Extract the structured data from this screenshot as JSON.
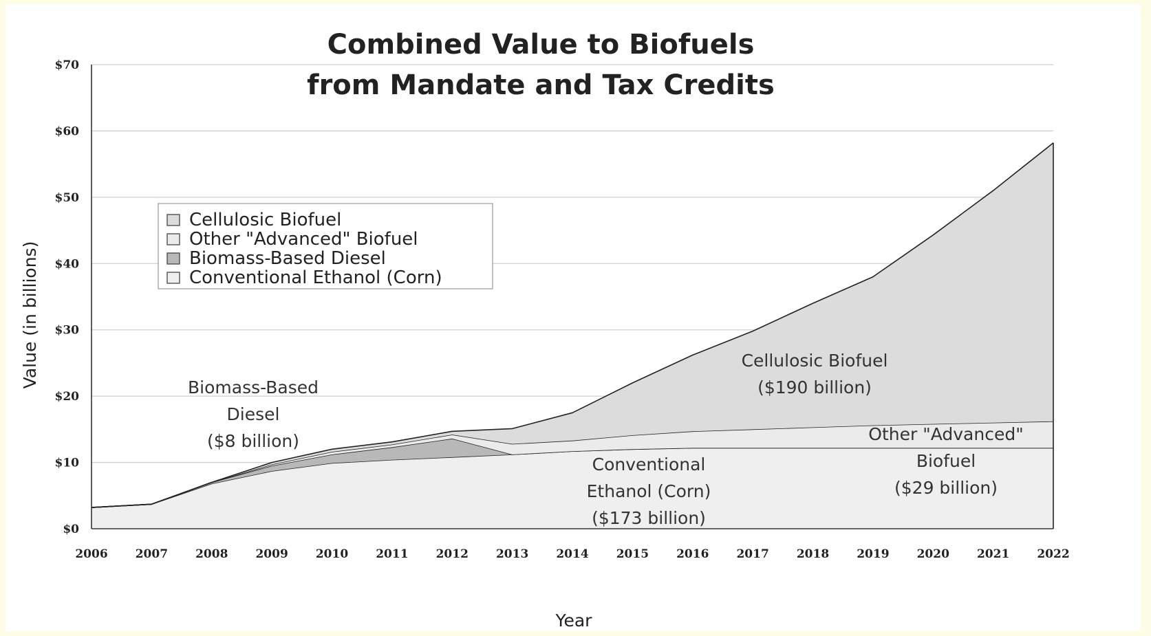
{
  "chart_data": {
    "type": "area",
    "stacked": true,
    "title": [
      "Combined Value to Biofuels",
      "from Mandate and Tax Credits"
    ],
    "xlabel": "Year",
    "ylabel": "Value (in billions)",
    "x": [
      2006,
      2007,
      2008,
      2009,
      2010,
      2011,
      2012,
      2013,
      2014,
      2015,
      2016,
      2017,
      2018,
      2019,
      2020,
      2021,
      2022
    ],
    "x_tick_labels": [
      "2006",
      "2007",
      "2008",
      "2009",
      "2010",
      "2011",
      "2012",
      "2013",
      "2014",
      "2015",
      "2016",
      "2017",
      "2018",
      "2019",
      "2020",
      "2021",
      "2022"
    ],
    "ylim": [
      0,
      70
    ],
    "y_ticks": [
      0,
      10,
      20,
      30,
      40,
      50,
      60,
      70
    ],
    "y_tick_labels": [
      "$0",
      "$10",
      "$20",
      "$30",
      "$40",
      "$50",
      "$60",
      "$70"
    ],
    "grid": "horizontal",
    "legend_position": "upper-left",
    "series": [
      {
        "name": "Conventional Ethanol (Corn)",
        "color": "#efefef",
        "values": [
          3.2,
          3.7,
          6.8,
          8.7,
          9.9,
          10.4,
          10.8,
          11.2,
          11.7,
          12.0,
          12.2,
          12.2,
          12.2,
          12.2,
          12.2,
          12.2,
          12.2
        ]
      },
      {
        "name": "Biomass-Based Diesel",
        "color": "#b8b8b8",
        "values": [
          0,
          0,
          0.2,
          0.8,
          1.3,
          1.9,
          2.8,
          0,
          0,
          0,
          0,
          0,
          0,
          0,
          0,
          0,
          0
        ]
      },
      {
        "name": "Other \"Advanced\" Biofuel",
        "color": "#ebebeb",
        "values": [
          0,
          0,
          0,
          0.2,
          0.4,
          0.4,
          0.6,
          1.6,
          1.6,
          2.1,
          2.5,
          2.8,
          3.1,
          3.4,
          3.6,
          3.8,
          4.0
        ]
      },
      {
        "name": "Cellulosic Biofuel",
        "color": "#dcdcdc",
        "values": [
          0,
          0,
          0,
          0.3,
          0.4,
          0.4,
          0.5,
          2.3,
          4.2,
          7.9,
          11.5,
          14.8,
          18.7,
          22.4,
          28.5,
          35.0,
          42.0
        ]
      }
    ],
    "annotations": [
      {
        "lines": [
          "Biomass-Based",
          "Diesel",
          "($8 billion)"
        ]
      },
      {
        "lines": [
          "Cellulosic Biofuel",
          "($190 billion)"
        ]
      },
      {
        "lines": [
          "Other \"Advanced\"",
          "Biofuel",
          "($29 billion)"
        ]
      },
      {
        "lines": [
          "Conventional",
          "Ethanol (Corn)",
          "($173 billion)"
        ]
      }
    ]
  }
}
